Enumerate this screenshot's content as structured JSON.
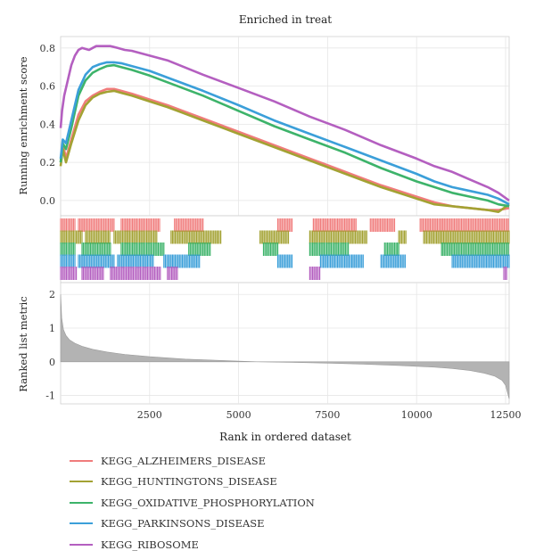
{
  "chart_data": {
    "type": "line",
    "title": "Enriched in treat",
    "xlabel": "Rank in ordered dataset",
    "ylabel_top": "Running enrichment score",
    "ylabel_bottom": "Ranked list metric",
    "xlim": [
      0,
      12600
    ],
    "top_ylim": [
      -0.08,
      0.86
    ],
    "bottom_ylim": [
      -1.25,
      2.35
    ],
    "x_ticks": [
      2500,
      5000,
      7500,
      10000,
      12500
    ],
    "x_tick_labels": [
      "2500",
      "5000",
      "7500",
      "10000",
      "12500"
    ],
    "top_y_ticks": [
      0,
      0.2,
      0.4,
      0.6,
      0.8
    ],
    "top_y_tick_labels": [
      "0.0",
      "0.2",
      "0.4",
      "0.6",
      "0.8"
    ],
    "bottom_y_ticks": [
      -1,
      0,
      1,
      2
    ],
    "bottom_y_tick_labels": [
      "-1",
      "0",
      "1",
      "2"
    ],
    "grid": true,
    "legend_position": "bottom",
    "series": [
      {
        "name": "KEGG_ALZHEIMERS_DISEASE",
        "color": "#f07c7c",
        "x": [
          0,
          60,
          150,
          300,
          500,
          700,
          900,
          1100,
          1300,
          1500,
          1700,
          2000,
          2500,
          3000,
          4000,
          5000,
          6000,
          7000,
          8000,
          9000,
          10000,
          10500,
          11000,
          11500,
          12000,
          12300,
          12600
        ],
        "y": [
          0.2,
          0.3,
          0.22,
          0.32,
          0.45,
          0.52,
          0.55,
          0.57,
          0.585,
          0.585,
          0.575,
          0.56,
          0.53,
          0.5,
          0.43,
          0.36,
          0.29,
          0.22,
          0.15,
          0.08,
          0.02,
          -0.01,
          -0.03,
          -0.04,
          -0.05,
          -0.05,
          -0.04
        ]
      },
      {
        "name": "KEGG_HUNTINGTONS_DISEASE",
        "color": "#a3a233",
        "x": [
          0,
          60,
          150,
          300,
          500,
          700,
          900,
          1100,
          1300,
          1500,
          1700,
          2000,
          2500,
          3000,
          4000,
          5000,
          6000,
          7000,
          8000,
          9000,
          10000,
          10500,
          11000,
          11500,
          12000,
          12300,
          12600
        ],
        "y": [
          0.18,
          0.27,
          0.2,
          0.3,
          0.42,
          0.5,
          0.54,
          0.56,
          0.57,
          0.575,
          0.565,
          0.55,
          0.52,
          0.49,
          0.42,
          0.35,
          0.28,
          0.21,
          0.14,
          0.07,
          0.01,
          -0.02,
          -0.03,
          -0.04,
          -0.05,
          -0.06,
          -0.02
        ]
      },
      {
        "name": "KEGG_OXIDATIVE_PHOSPHORYLATION",
        "color": "#3db36a",
        "x": [
          0,
          60,
          150,
          300,
          500,
          700,
          900,
          1100,
          1300,
          1500,
          1700,
          2000,
          2500,
          3000,
          4000,
          5000,
          6000,
          7000,
          8000,
          9000,
          10000,
          10500,
          11000,
          11500,
          12000,
          12300,
          12600
        ],
        "y": [
          0.2,
          0.3,
          0.27,
          0.38,
          0.55,
          0.63,
          0.67,
          0.69,
          0.705,
          0.71,
          0.7,
          0.685,
          0.655,
          0.62,
          0.55,
          0.47,
          0.39,
          0.32,
          0.25,
          0.17,
          0.1,
          0.07,
          0.04,
          0.02,
          0.0,
          -0.02,
          -0.03
        ]
      },
      {
        "name": "KEGG_PARKINSONS_DISEASE",
        "color": "#3b9fd9",
        "x": [
          0,
          60,
          150,
          300,
          500,
          700,
          900,
          1100,
          1300,
          1500,
          1700,
          2000,
          2500,
          3000,
          4000,
          5000,
          6000,
          7000,
          8000,
          9000,
          10000,
          10500,
          11000,
          11500,
          12000,
          12300,
          12600
        ],
        "y": [
          0.22,
          0.32,
          0.3,
          0.42,
          0.58,
          0.66,
          0.7,
          0.715,
          0.725,
          0.725,
          0.72,
          0.705,
          0.68,
          0.645,
          0.575,
          0.5,
          0.42,
          0.35,
          0.28,
          0.21,
          0.14,
          0.1,
          0.07,
          0.05,
          0.03,
          0.01,
          -0.02
        ]
      },
      {
        "name": "KEGG_RIBOSOME",
        "color": "#b45fc0",
        "x": [
          0,
          40,
          100,
          200,
          300,
          400,
          500,
          600,
          700,
          800,
          900,
          1000,
          1200,
          1400,
          1600,
          1800,
          2000,
          2500,
          3000,
          4000,
          5000,
          6000,
          7000,
          8000,
          9000,
          10000,
          10500,
          11000,
          11500,
          12000,
          12300,
          12600
        ],
        "y": [
          0.38,
          0.47,
          0.55,
          0.63,
          0.71,
          0.76,
          0.79,
          0.8,
          0.795,
          0.79,
          0.8,
          0.81,
          0.81,
          0.81,
          0.8,
          0.79,
          0.785,
          0.76,
          0.735,
          0.66,
          0.59,
          0.52,
          0.44,
          0.37,
          0.29,
          0.22,
          0.18,
          0.15,
          0.11,
          0.07,
          0.04,
          0.0
        ]
      }
    ],
    "hit_ranges": [
      [
        [
          0,
          400
        ],
        [
          500,
          1500
        ],
        [
          1700,
          2800
        ],
        [
          3200,
          4000
        ],
        [
          6100,
          6500
        ],
        [
          7100,
          8300
        ],
        [
          8700,
          9400
        ],
        [
          10100,
          12600
        ]
      ],
      [
        [
          0,
          600
        ],
        [
          700,
          1400
        ],
        [
          1500,
          2700
        ],
        [
          3100,
          4500
        ],
        [
          5600,
          6400
        ],
        [
          7000,
          8600
        ],
        [
          9500,
          9700
        ],
        [
          10200,
          12600
        ]
      ],
      [
        [
          0,
          400
        ],
        [
          600,
          1400
        ],
        [
          1700,
          2900
        ],
        [
          3600,
          4200
        ],
        [
          5700,
          6100
        ],
        [
          7000,
          8100
        ],
        [
          9100,
          9500
        ],
        [
          10700,
          12600
        ]
      ],
      [
        [
          0,
          400
        ],
        [
          500,
          1500
        ],
        [
          1600,
          2600
        ],
        [
          2900,
          3900
        ],
        [
          6100,
          6500
        ],
        [
          7300,
          8500
        ],
        [
          9000,
          9700
        ],
        [
          11000,
          12600
        ]
      ],
      [
        [
          0,
          450
        ],
        [
          600,
          1200
        ],
        [
          1400,
          2800
        ],
        [
          3000,
          3300
        ],
        [
          7000,
          7300
        ],
        [
          12450,
          12550
        ]
      ]
    ],
    "ranked_metric": {
      "x": [
        0,
        30,
        80,
        150,
        250,
        400,
        600,
        900,
        1300,
        1800,
        2500,
        3500,
        4500,
        5500,
        6500,
        7500,
        8500,
        9500,
        10500,
        11000,
        11500,
        11900,
        12200,
        12400,
        12500,
        12550,
        12600
      ],
      "y": [
        2.0,
        1.3,
        0.95,
        0.78,
        0.65,
        0.55,
        0.46,
        0.37,
        0.29,
        0.22,
        0.15,
        0.08,
        0.04,
        0.0,
        -0.02,
        -0.04,
        -0.07,
        -0.11,
        -0.16,
        -0.2,
        -0.26,
        -0.34,
        -0.43,
        -0.55,
        -0.7,
        -0.9,
        -1.1
      ]
    }
  }
}
